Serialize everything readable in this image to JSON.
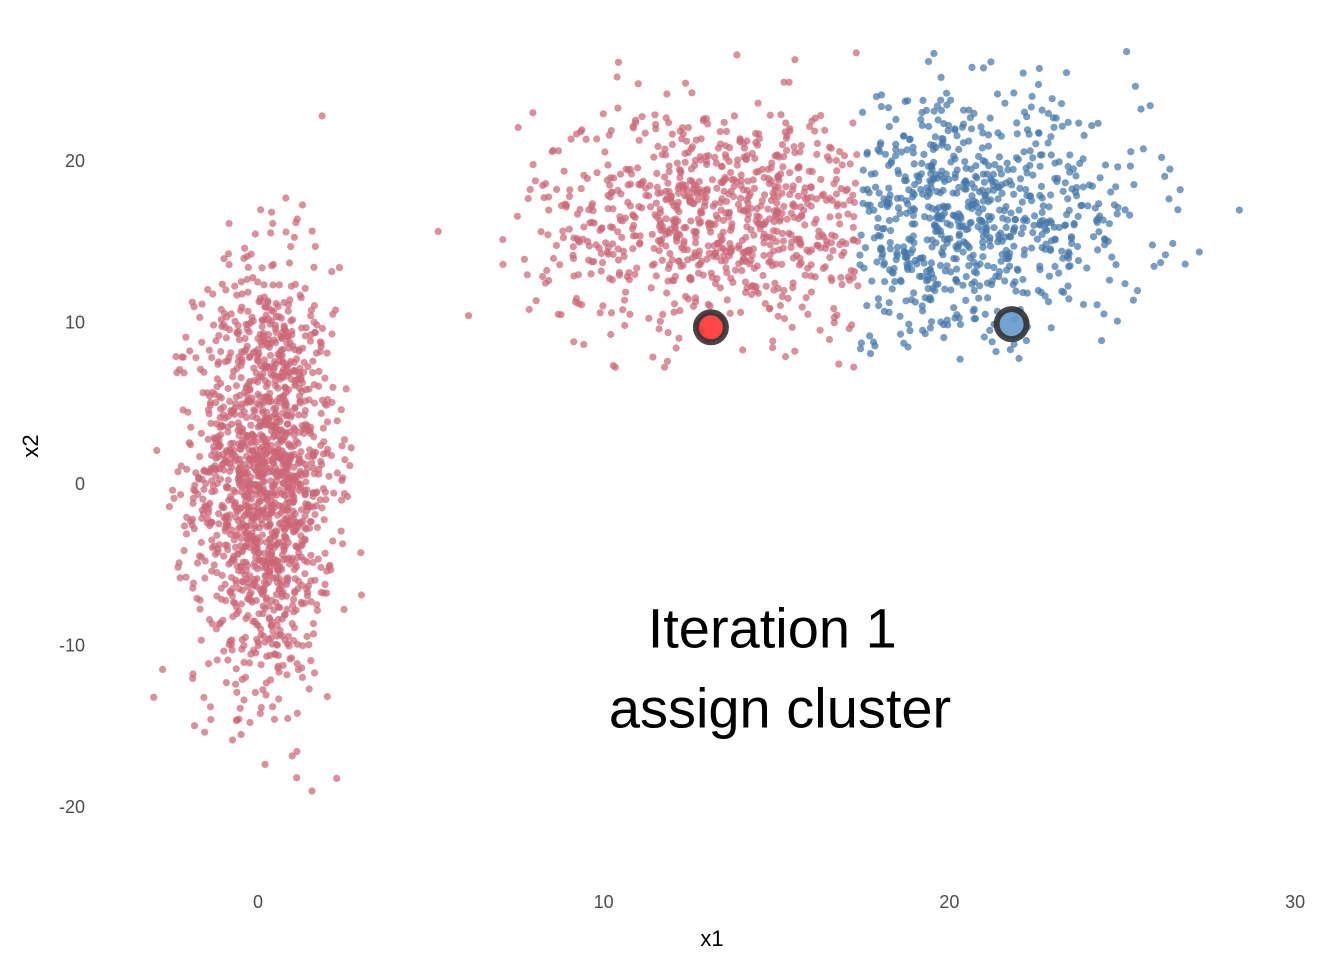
{
  "chart_data": {
    "type": "scatter",
    "title": "",
    "xlabel": "x1",
    "ylabel": "x2",
    "xlim": [
      -5,
      30
    ],
    "ylim": [
      -24,
      27
    ],
    "x_ticks": [
      0,
      10,
      20,
      30
    ],
    "x_tick_labels": [
      "0",
      "10",
      "20",
      "30"
    ],
    "y_ticks": [
      -20,
      -10,
      0,
      10,
      20
    ],
    "y_tick_labels": [
      "-20",
      "-10",
      "0",
      "10",
      "20"
    ],
    "grid": false,
    "legend": "none",
    "annotation_lines": [
      "Iteration 1",
      "assign cluster"
    ],
    "annotation_position_data": [
      15.1,
      -12.6
    ],
    "clusters": [
      {
        "color": "#CC6677",
        "point_count": 1500,
        "center": [
          0.2,
          0.5
        ],
        "spread": [
          1.0,
          6.5
        ],
        "x_range": [
          -3.5,
          3.0
        ],
        "y_range": [
          -22,
          23
        ]
      },
      {
        "color": "#CC6677",
        "point_count": 850,
        "center": [
          13.6,
          16.5
        ],
        "spread": [
          2.8,
          3.5
        ],
        "x_range": [
          5.0,
          17.4
        ],
        "y_range": [
          6.5,
          27
        ]
      },
      {
        "color": "#4477AA",
        "point_count": 750,
        "center": [
          20.2,
          16.3
        ],
        "spread": [
          2.7,
          3.7
        ],
        "x_range": [
          17.4,
          29.5
        ],
        "y_range": [
          7.5,
          27
        ]
      }
    ],
    "centroids": [
      {
        "x": 13.1,
        "y": 9.7,
        "fill": "#FF3333",
        "stroke": "#333333"
      },
      {
        "x": 21.8,
        "y": 9.9,
        "fill": "#6699CC",
        "stroke": "#333333"
      }
    ]
  }
}
